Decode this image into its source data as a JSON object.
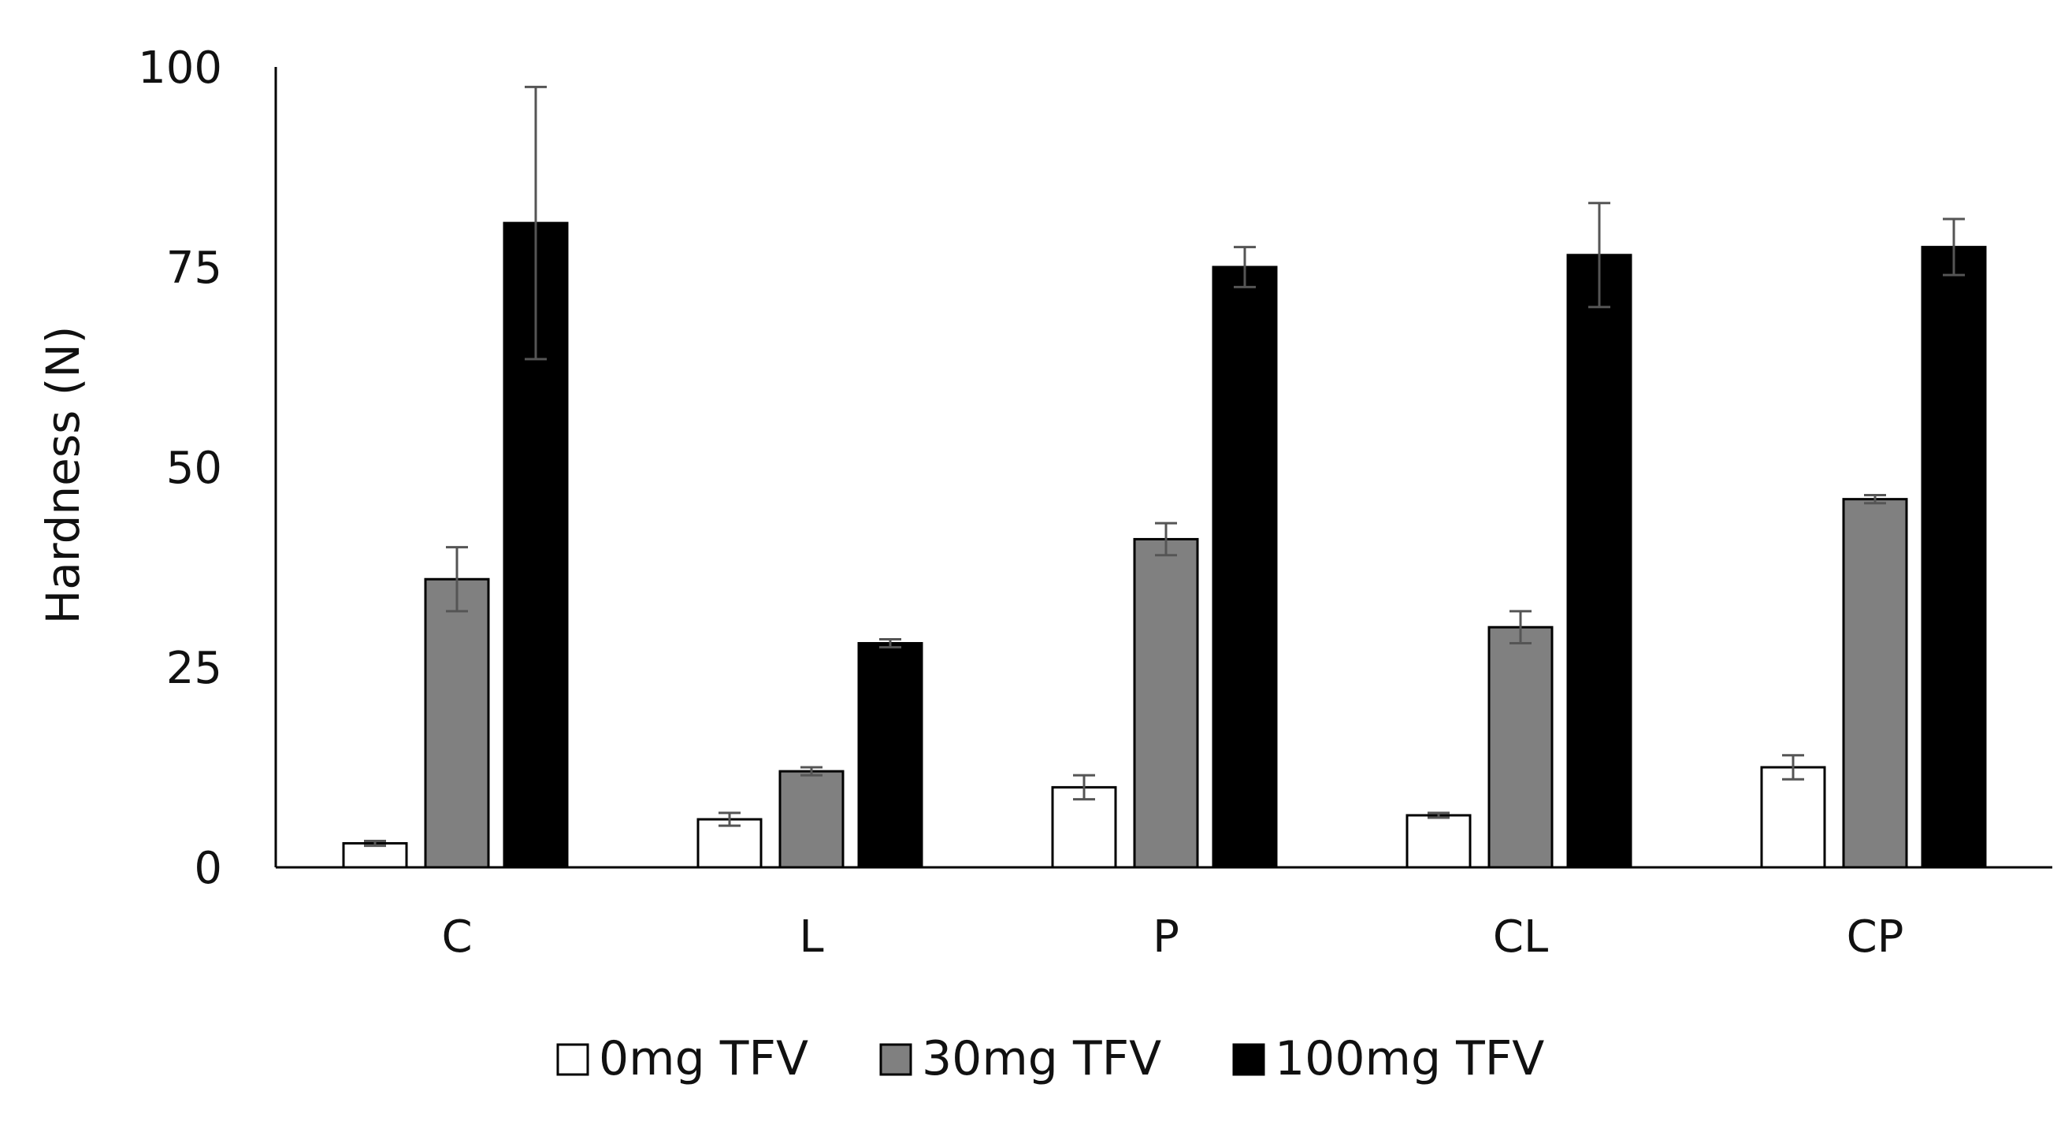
{
  "chart_data": {
    "type": "bar",
    "title": "",
    "xlabel": "",
    "ylabel": "Hardness (N)",
    "ylim": [
      0,
      100
    ],
    "yticks": [
      0,
      25,
      50,
      75,
      100
    ],
    "grid": false,
    "legend_position": "bottom-center",
    "categories": [
      "C",
      "L",
      "P",
      "CL",
      "CP"
    ],
    "series": [
      {
        "name": "0mg TFV",
        "color": "#ffffff",
        "values": [
          3,
          6,
          10,
          6.5,
          12.5
        ],
        "errors": [
          0.3,
          0.8,
          1.5,
          0.3,
          1.5
        ]
      },
      {
        "name": "30mg TFV",
        "color": "#808080",
        "values": [
          36,
          12,
          41,
          30,
          46
        ],
        "errors": [
          4,
          0.5,
          2,
          2,
          0.5
        ]
      },
      {
        "name": "100mg TFV",
        "color": "#000000",
        "values": [
          80.5,
          28,
          75,
          76.5,
          77.5
        ],
        "errors": [
          17,
          0.5,
          2.5,
          6.5,
          3.5
        ]
      }
    ]
  }
}
